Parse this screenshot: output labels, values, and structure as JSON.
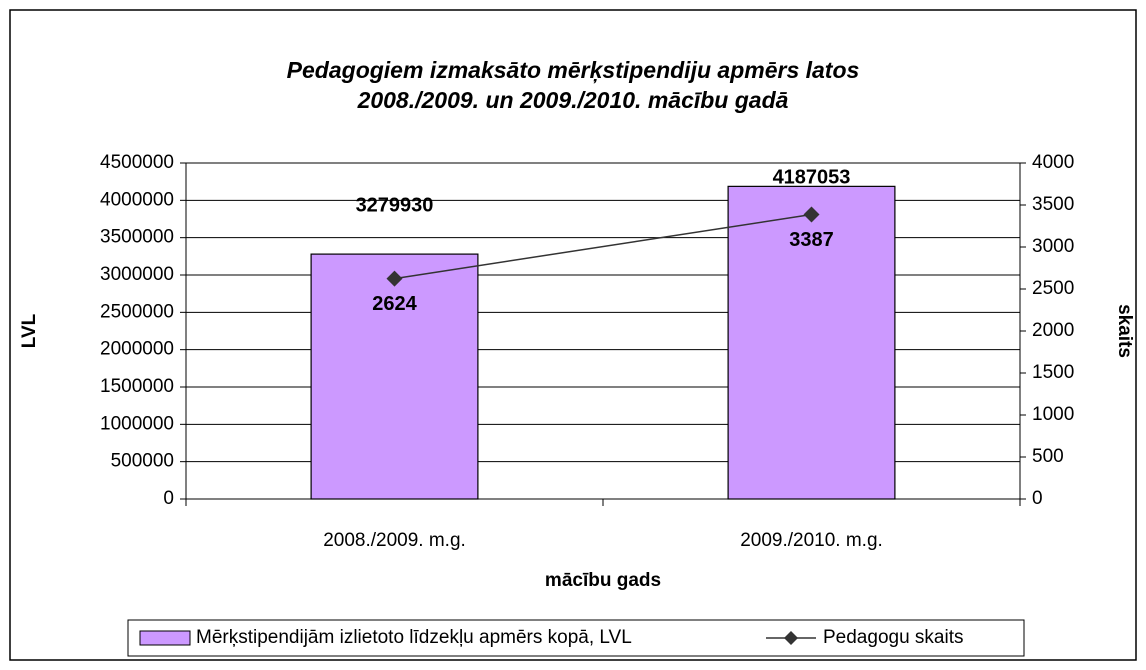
{
  "chart_data": {
    "type": "bar",
    "title": [
      "Pedagogiem izmaksāto mērķstipendiju apmērs latos",
      "2008./2009. un 2009./2010. mācību gadā"
    ],
    "xlabel": "mācību gads",
    "ylabel": "LVL",
    "y2label": "skaits",
    "categories": [
      "2008./2009. m.g.",
      "2009./2010. m.g."
    ],
    "series": [
      {
        "name": "Mērķstipendijām izlietoto līdzekļu apmērs kopā, LVL",
        "type": "bar",
        "color": "#cc99ff",
        "values": [
          3279930,
          4187053
        ]
      },
      {
        "name": "Pedagogu skaits",
        "type": "line",
        "axis": "y2",
        "color": "#333333",
        "values": [
          2624,
          3387
        ]
      }
    ],
    "ylim": [
      0,
      4500000
    ],
    "yticks": [
      0,
      500000,
      1000000,
      1500000,
      2000000,
      2500000,
      3000000,
      3500000,
      4000000,
      4500000
    ],
    "y2lim": [
      0,
      4000
    ],
    "y2ticks": [
      0,
      500,
      1000,
      1500,
      2000,
      2500,
      3000,
      3500,
      4000
    ],
    "grid": true,
    "legend": "bottom"
  }
}
